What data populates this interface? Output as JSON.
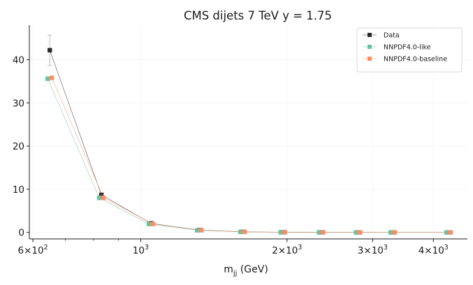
{
  "chart_data": {
    "type": "line",
    "title": "CMS dijets 7 TeV y = 1.75",
    "xlabel_main": "m",
    "xlabel_sub": "jj",
    "xlabel_unit": " (GeV)",
    "ylabel": "",
    "xscale": "log",
    "xlim": [
      590,
      4700
    ],
    "ylim": [
      -1.5,
      48
    ],
    "yticks": [
      0,
      10,
      20,
      30,
      40
    ],
    "xticks_major": [
      {
        "value": 600,
        "mantissa": "6",
        "exponent": "2"
      },
      {
        "value": 1000,
        "mantissa": "",
        "exponent": "3"
      },
      {
        "value": 2000,
        "mantissa": "2",
        "exponent": "3"
      },
      {
        "value": 3000,
        "mantissa": "3",
        "exponent": "3"
      },
      {
        "value": 4000,
        "mantissa": "4",
        "exponent": "3"
      }
    ],
    "xticks_minor": [
      700,
      800,
      900
    ],
    "grid": true,
    "legend_position": "top-right",
    "series": [
      {
        "name": "Data",
        "color": "#2a2a2a",
        "marker": "square",
        "x": [
          650,
          830,
          1050,
          1320,
          1620,
          1960,
          2350,
          2800,
          3300,
          4300
        ],
        "y": [
          42.2,
          8.7,
          2.1,
          0.55,
          0.15,
          0.05,
          0.03,
          0.02,
          0.01,
          0.005
        ],
        "yerr": [
          3.5,
          0.4,
          0.1,
          0.03,
          0.01,
          0.005,
          0.003,
          0.002,
          0.001,
          0.001
        ]
      },
      {
        "name": "NNPDF4.0-like",
        "color": "#66c2a5",
        "marker": "square",
        "x": [
          650,
          830,
          1050,
          1320,
          1620,
          1960,
          2350,
          2800,
          3300,
          4300
        ],
        "y": [
          35.6,
          8.0,
          1.95,
          0.5,
          0.13,
          0.04,
          0.02,
          0.01,
          0.005,
          0.002
        ]
      },
      {
        "name": "NNPDF4.0-baseline",
        "color": "#fc8d62",
        "marker": "square",
        "x": [
          650,
          830,
          1050,
          1320,
          1620,
          1960,
          2350,
          2800,
          3300,
          4300
        ],
        "y": [
          35.8,
          8.0,
          1.95,
          0.5,
          0.13,
          0.04,
          0.02,
          0.01,
          0.005,
          0.002
        ]
      }
    ]
  }
}
